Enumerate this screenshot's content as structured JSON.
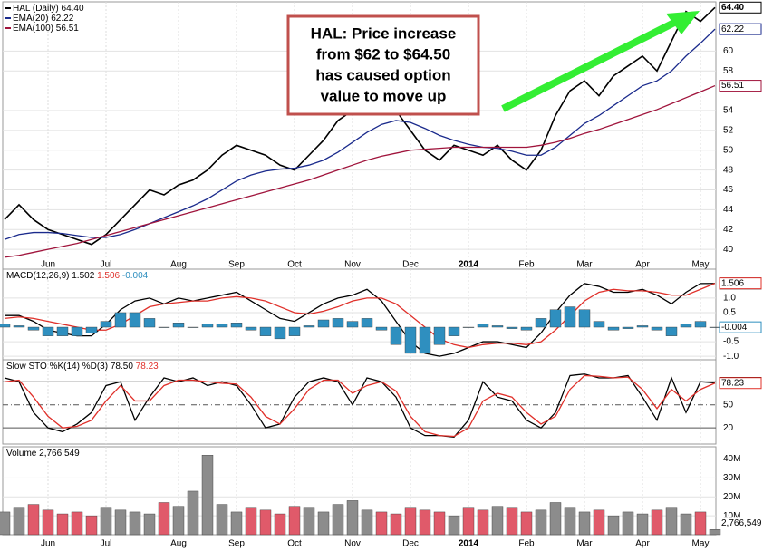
{
  "chart_data": [
    {
      "type": "line",
      "ylim": [
        39.1,
        64.7
      ],
      "yticks": [
        40,
        42,
        44,
        46,
        48,
        50,
        52,
        54,
        58,
        60
      ],
      "grid": true,
      "categories": [
        null,
        null,
        null,
        "Jun",
        null,
        null,
        null,
        "Jul",
        null,
        null,
        null,
        null,
        "Aug",
        null,
        null,
        null,
        "Sep",
        null,
        null,
        null,
        "Oct",
        null,
        null,
        null,
        "Nov",
        null,
        null,
        null,
        "Dec",
        null,
        null,
        null,
        "2014",
        null,
        null,
        null,
        "Feb",
        null,
        null,
        null,
        "Mar",
        null,
        null,
        null,
        "Apr",
        null,
        null,
        null,
        "May",
        null
      ],
      "annotation": [
        "HAL: Price increase",
        "from $62 to $64.50",
        "has caused option",
        "value to move up"
      ],
      "series": [
        {
          "name": "HAL (Daily)",
          "last_label": "64.40",
          "color": "#000000",
          "values": [
            43,
            44.5,
            43,
            42,
            41.5,
            41,
            40.5,
            41.5,
            43,
            44.5,
            46,
            45.5,
            46.5,
            47,
            48,
            49.5,
            50.5,
            50,
            49.5,
            48.5,
            48,
            49.5,
            51,
            53,
            54,
            55.5,
            55,
            54,
            52,
            50,
            49,
            50.5,
            50,
            49.5,
            50.5,
            49,
            48,
            50,
            53.5,
            56,
            57,
            55.5,
            57.5,
            58.5,
            59.5,
            58,
            61,
            64,
            63,
            64.4
          ]
        },
        {
          "name": "EMA(20)",
          "last_label": "62.22",
          "color": "#1a2a8c",
          "values": [
            41,
            41.5,
            41.7,
            41.7,
            41.6,
            41.4,
            41.2,
            41.2,
            41.5,
            42,
            42.6,
            43.2,
            43.8,
            44.4,
            45.1,
            46,
            46.9,
            47.5,
            47.9,
            48.1,
            48.2,
            48.5,
            49,
            49.8,
            50.8,
            51.8,
            52.6,
            53,
            52.8,
            52.2,
            51.5,
            51,
            50.6,
            50.3,
            50.2,
            49.9,
            49.5,
            49.5,
            50.3,
            51.5,
            52.7,
            53.5,
            54.5,
            55.5,
            56.5,
            57,
            58,
            59.5,
            60.8,
            62.22
          ]
        },
        {
          "name": "EMA(100)",
          "last_label": "56.51",
          "color": "#a0143c",
          "values": [
            39.2,
            39.4,
            39.7,
            40,
            40.3,
            40.6,
            41,
            41.4,
            41.8,
            42.2,
            42.6,
            43,
            43.4,
            43.8,
            44.2,
            44.6,
            45,
            45.4,
            45.8,
            46.2,
            46.6,
            47,
            47.5,
            48,
            48.5,
            49,
            49.4,
            49.7,
            50,
            50.1,
            50.2,
            50.3,
            50.3,
            50.3,
            50.3,
            50.3,
            50.3,
            50.5,
            50.8,
            51.2,
            51.7,
            52.1,
            52.6,
            53.1,
            53.6,
            54.1,
            54.7,
            55.3,
            55.9,
            56.51
          ]
        }
      ]
    },
    {
      "type": "line",
      "title": "MACD(12,26,9)",
      "ylim": [
        -1.12,
        1.9
      ],
      "yticks": [
        {
          "value": 1.0,
          "label": "1.0"
        },
        0.5,
        -0.5,
        {
          "value": -1.0,
          "label": "-1.0"
        }
      ],
      "series": [
        {
          "last_label": "1.502",
          "color": "#000000",
          "values": [
            0.4,
            0.4,
            0.2,
            -0.1,
            -0.2,
            -0.3,
            -0.3,
            0.1,
            0.6,
            0.9,
            1.0,
            0.8,
            1.0,
            0.9,
            1.0,
            1.1,
            1.2,
            0.9,
            0.6,
            0.3,
            0.2,
            0.5,
            0.8,
            1.0,
            1.1,
            1.3,
            0.9,
            0.2,
            -0.5,
            -0.9,
            -1.0,
            -0.9,
            -0.7,
            -0.5,
            -0.5,
            -0.6,
            -0.7,
            -0.2,
            0.5,
            1.1,
            1.5,
            1.4,
            1.2,
            1.2,
            1.3,
            1.1,
            0.8,
            1.2,
            1.5,
            1.502
          ]
        },
        {
          "last_label": "1.506",
          "color": "#e0302a",
          "values": [
            0.3,
            0.35,
            0.3,
            0.2,
            0.1,
            0,
            -0.1,
            -0.1,
            0.1,
            0.4,
            0.7,
            0.8,
            0.85,
            0.9,
            0.9,
            1.0,
            1.05,
            1.0,
            0.9,
            0.7,
            0.5,
            0.45,
            0.55,
            0.7,
            0.9,
            1.0,
            1.0,
            0.8,
            0.4,
            0,
            -0.4,
            -0.6,
            -0.7,
            -0.6,
            -0.55,
            -0.55,
            -0.6,
            -0.5,
            -0.1,
            0.4,
            0.9,
            1.2,
            1.3,
            1.25,
            1.25,
            1.2,
            1.1,
            1.1,
            1.3,
            1.506
          ]
        },
        {
          "last_label": "-0.004",
          "color": "#2f8fbf",
          "style": "bar",
          "values": [
            0.1,
            0.05,
            -0.1,
            -0.3,
            -0.3,
            -0.3,
            -0.2,
            0.2,
            0.5,
            0.5,
            0.3,
            0,
            0.15,
            0,
            0.1,
            0.1,
            0.15,
            -0.1,
            -0.3,
            -0.4,
            -0.3,
            0.05,
            0.25,
            0.3,
            0.2,
            0.3,
            -0.1,
            -0.6,
            -0.9,
            -0.9,
            -0.6,
            -0.3,
            0,
            0.1,
            0.05,
            -0.05,
            -0.1,
            0.3,
            0.6,
            0.7,
            0.6,
            0.2,
            -0.1,
            -0.05,
            0.05,
            -0.1,
            -0.3,
            0.1,
            0.2,
            -0.004
          ]
        }
      ]
    },
    {
      "type": "line",
      "title": "Slow STO %K(14) %D(3)",
      "ylim": [
        -1,
        105
      ],
      "yticks": [
        80,
        50,
        20
      ],
      "series": [
        {
          "last_label": "78.50",
          "color": "#000000",
          "values": [
            85,
            80,
            40,
            20,
            15,
            25,
            40,
            75,
            80,
            30,
            60,
            85,
            80,
            85,
            75,
            80,
            75,
            50,
            20,
            25,
            60,
            80,
            85,
            80,
            50,
            85,
            80,
            60,
            20,
            10,
            10,
            8,
            30,
            80,
            60,
            55,
            30,
            20,
            40,
            88,
            90,
            85,
            85,
            88,
            60,
            30,
            85,
            40,
            80,
            78.5
          ]
        },
        {
          "last_label": "78.23",
          "color": "#e0302a",
          "values": [
            80,
            82,
            60,
            35,
            20,
            22,
            30,
            55,
            75,
            55,
            55,
            75,
            82,
            82,
            80,
            78,
            77,
            60,
            35,
            25,
            45,
            70,
            82,
            82,
            65,
            75,
            80,
            68,
            35,
            15,
            10,
            9,
            20,
            55,
            65,
            60,
            40,
            25,
            35,
            70,
            88,
            87,
            85,
            86,
            70,
            45,
            70,
            55,
            70,
            78.23
          ]
        }
      ]
    },
    {
      "type": "bar",
      "title": "Volume",
      "ylim": [
        0,
        45000000
      ],
      "yticks": [
        {
          "value": 10000000,
          "label": "10M"
        },
        {
          "value": 20000000,
          "label": "20M"
        },
        {
          "value": 30000000,
          "label": "30M"
        },
        {
          "value": 40000000,
          "label": "40M"
        }
      ],
      "up_color": "#8c8c8c",
      "down_color": "#e05a6a",
      "categories": [
        null,
        null,
        null,
        "Jun",
        null,
        null,
        null,
        "Jul",
        null,
        null,
        null,
        null,
        "Aug",
        null,
        null,
        null,
        "Sep",
        null,
        null,
        null,
        "Oct",
        null,
        null,
        null,
        "Nov",
        null,
        null,
        null,
        "Dec",
        null,
        null,
        null,
        "2014",
        null,
        null,
        null,
        "Feb",
        null,
        null,
        null,
        "Mar",
        null,
        null,
        null,
        "Apr",
        null,
        null,
        null,
        "May",
        null
      ],
      "series": [
        {
          "last_label": "2,766,549",
          "values": [
            12000000,
            14000000,
            16000000,
            13000000,
            11000000,
            12000000,
            10000000,
            14000000,
            13000000,
            12000000,
            11000000,
            17000000,
            15000000,
            23000000,
            42000000,
            16000000,
            12000000,
            14000000,
            13000000,
            11000000,
            15000000,
            14000000,
            12000000,
            16000000,
            18000000,
            13000000,
            12000000,
            11000000,
            14000000,
            13000000,
            12000000,
            10000000,
            14000000,
            13000000,
            15000000,
            14000000,
            12000000,
            13000000,
            17000000,
            14000000,
            12000000,
            13000000,
            10000000,
            12000000,
            11000000,
            13000000,
            14000000,
            11000000,
            12000000,
            2766549
          ]
        }
      ]
    }
  ]
}
